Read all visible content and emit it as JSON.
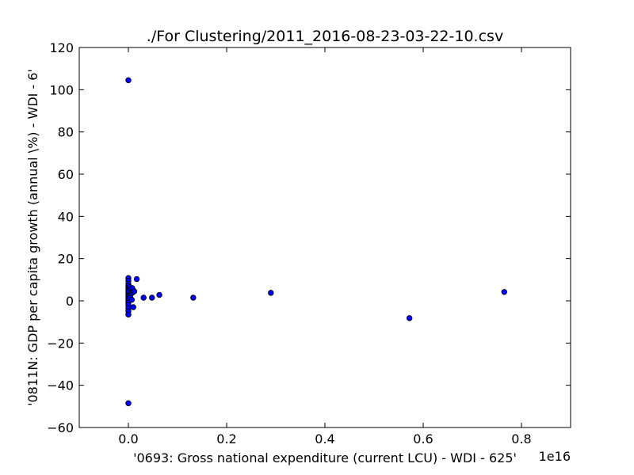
{
  "chart_data": {
    "type": "scatter",
    "title": "./For Clustering/2011_2016-08-23-03-22-10.csv",
    "xlabel": "'0693: Gross national expenditure  (current LCU) - WDI - 625'",
    "ylabel": "'0811N: GDP per capita growth  (annual \\%) - WDI - 6'",
    "x_offset_label": "1e16",
    "x_scale_exponent": 16,
    "xlim": [
      -0.1,
      0.9
    ],
    "ylim": [
      -60,
      120
    ],
    "xticks": [
      0.0,
      0.2,
      0.4,
      0.6,
      0.8
    ],
    "xtick_labels": [
      "0.0",
      "0.2",
      "0.4",
      "0.6",
      "0.8"
    ],
    "yticks": [
      -60,
      -40,
      -20,
      0,
      20,
      40,
      60,
      80,
      100,
      120
    ],
    "ytick_labels": [
      "−60",
      "−40",
      "−20",
      "0",
      "20",
      "40",
      "60",
      "80",
      "100",
      "120"
    ],
    "grid": false,
    "marker_color": "#0000ff",
    "marker_edge_color": "#000000",
    "series": [
      {
        "points": [
          {
            "x": 0.0,
            "y": 104.5
          },
          {
            "x": 0.0,
            "y": -48.5
          },
          {
            "x": 0.0,
            "y": 10.8
          },
          {
            "x": 0.0,
            "y": 9.5
          },
          {
            "x": 0.0,
            "y": 8.0
          },
          {
            "x": 0.0,
            "y": 7.0
          },
          {
            "x": 0.0,
            "y": 6.0
          },
          {
            "x": 0.0,
            "y": 5.0
          },
          {
            "x": 0.0,
            "y": 4.0
          },
          {
            "x": 0.0,
            "y": 3.0
          },
          {
            "x": 0.0,
            "y": 2.0
          },
          {
            "x": 0.0,
            "y": 1.0
          },
          {
            "x": 0.0,
            "y": 0.0
          },
          {
            "x": 0.0,
            "y": -1.0
          },
          {
            "x": 0.0,
            "y": -2.0
          },
          {
            "x": 0.0,
            "y": -3.5
          },
          {
            "x": 0.0,
            "y": -5.0
          },
          {
            "x": 0.0,
            "y": -6.5
          },
          {
            "x": 0.001,
            "y": 4.5
          },
          {
            "x": 0.002,
            "y": 2.5
          },
          {
            "x": 0.003,
            "y": 6.5
          },
          {
            "x": 0.004,
            "y": 1.5
          },
          {
            "x": 0.005,
            "y": 5.5
          },
          {
            "x": 0.006,
            "y": 3.5
          },
          {
            "x": 0.007,
            "y": 0.5
          },
          {
            "x": 0.008,
            "y": 6.0
          },
          {
            "x": 0.009,
            "y": 4.0
          },
          {
            "x": 0.01,
            "y": -3.0
          },
          {
            "x": 0.012,
            "y": 4.5
          },
          {
            "x": 0.017,
            "y": 10.3
          },
          {
            "x": 0.031,
            "y": 1.5
          },
          {
            "x": 0.048,
            "y": 1.5
          },
          {
            "x": 0.063,
            "y": 2.8
          },
          {
            "x": 0.132,
            "y": 1.5
          },
          {
            "x": 0.29,
            "y": 3.8
          },
          {
            "x": 0.572,
            "y": -8.2
          },
          {
            "x": 0.765,
            "y": 4.2
          }
        ]
      }
    ]
  }
}
